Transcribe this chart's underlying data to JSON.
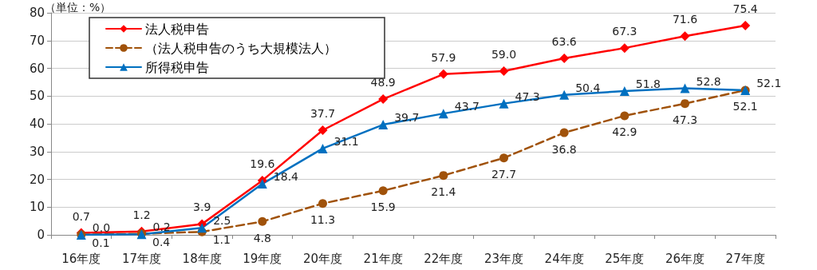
{
  "chart_data": {
    "type": "line",
    "annotations": [
      "（単位：%）"
    ],
    "categories": [
      "16年度",
      "17年度",
      "18年度",
      "19年度",
      "20年度",
      "21年度",
      "22年度",
      "23年度",
      "24年度",
      "25年度",
      "26年度",
      "27年度"
    ],
    "series": [
      {
        "name": "法人税申告",
        "color": "#ff0000",
        "marker": "diamond",
        "line_style": "solid",
        "values": [
          0.7,
          1.2,
          3.9,
          19.6,
          37.7,
          48.9,
          57.9,
          59.0,
          63.6,
          67.3,
          71.6,
          75.4
        ],
        "value_labels": [
          "0.7",
          "1.2",
          "3.9",
          "19.6",
          "37.7",
          "48.9",
          "57.9",
          "59.0",
          "63.6",
          "67.3",
          "71.6",
          "75.4"
        ]
      },
      {
        "name": "（法人税申告のうち大規模法人）",
        "color": "#a0520a",
        "marker": "circle",
        "line_style": "dashed",
        "values": [
          0.1,
          0.4,
          1.1,
          4.8,
          11.3,
          15.9,
          21.4,
          27.7,
          36.8,
          42.9,
          47.3,
          52.1
        ]
      },
      {
        "name": "所得税申告",
        "color": "#0070c0",
        "marker": "triangle",
        "line_style": "solid",
        "values": [
          0.0,
          0.2,
          2.5,
          18.4,
          31.1,
          39.7,
          43.7,
          47.3,
          50.4,
          51.8,
          52.8,
          52.1
        ],
        "value_labels": [
          "0.0",
          "0.2",
          "2.5",
          "18.4",
          "31.1",
          "39.7",
          "43.7",
          "47.3",
          "50.4",
          "51.8",
          "52.8",
          "52.1"
        ]
      }
    ],
    "ylim": [
      0,
      80
    ],
    "yticks": [
      0,
      10,
      20,
      30,
      40,
      50,
      60,
      70,
      80
    ],
    "grid": "y",
    "legend": "top left",
    "data_labels": true
  }
}
